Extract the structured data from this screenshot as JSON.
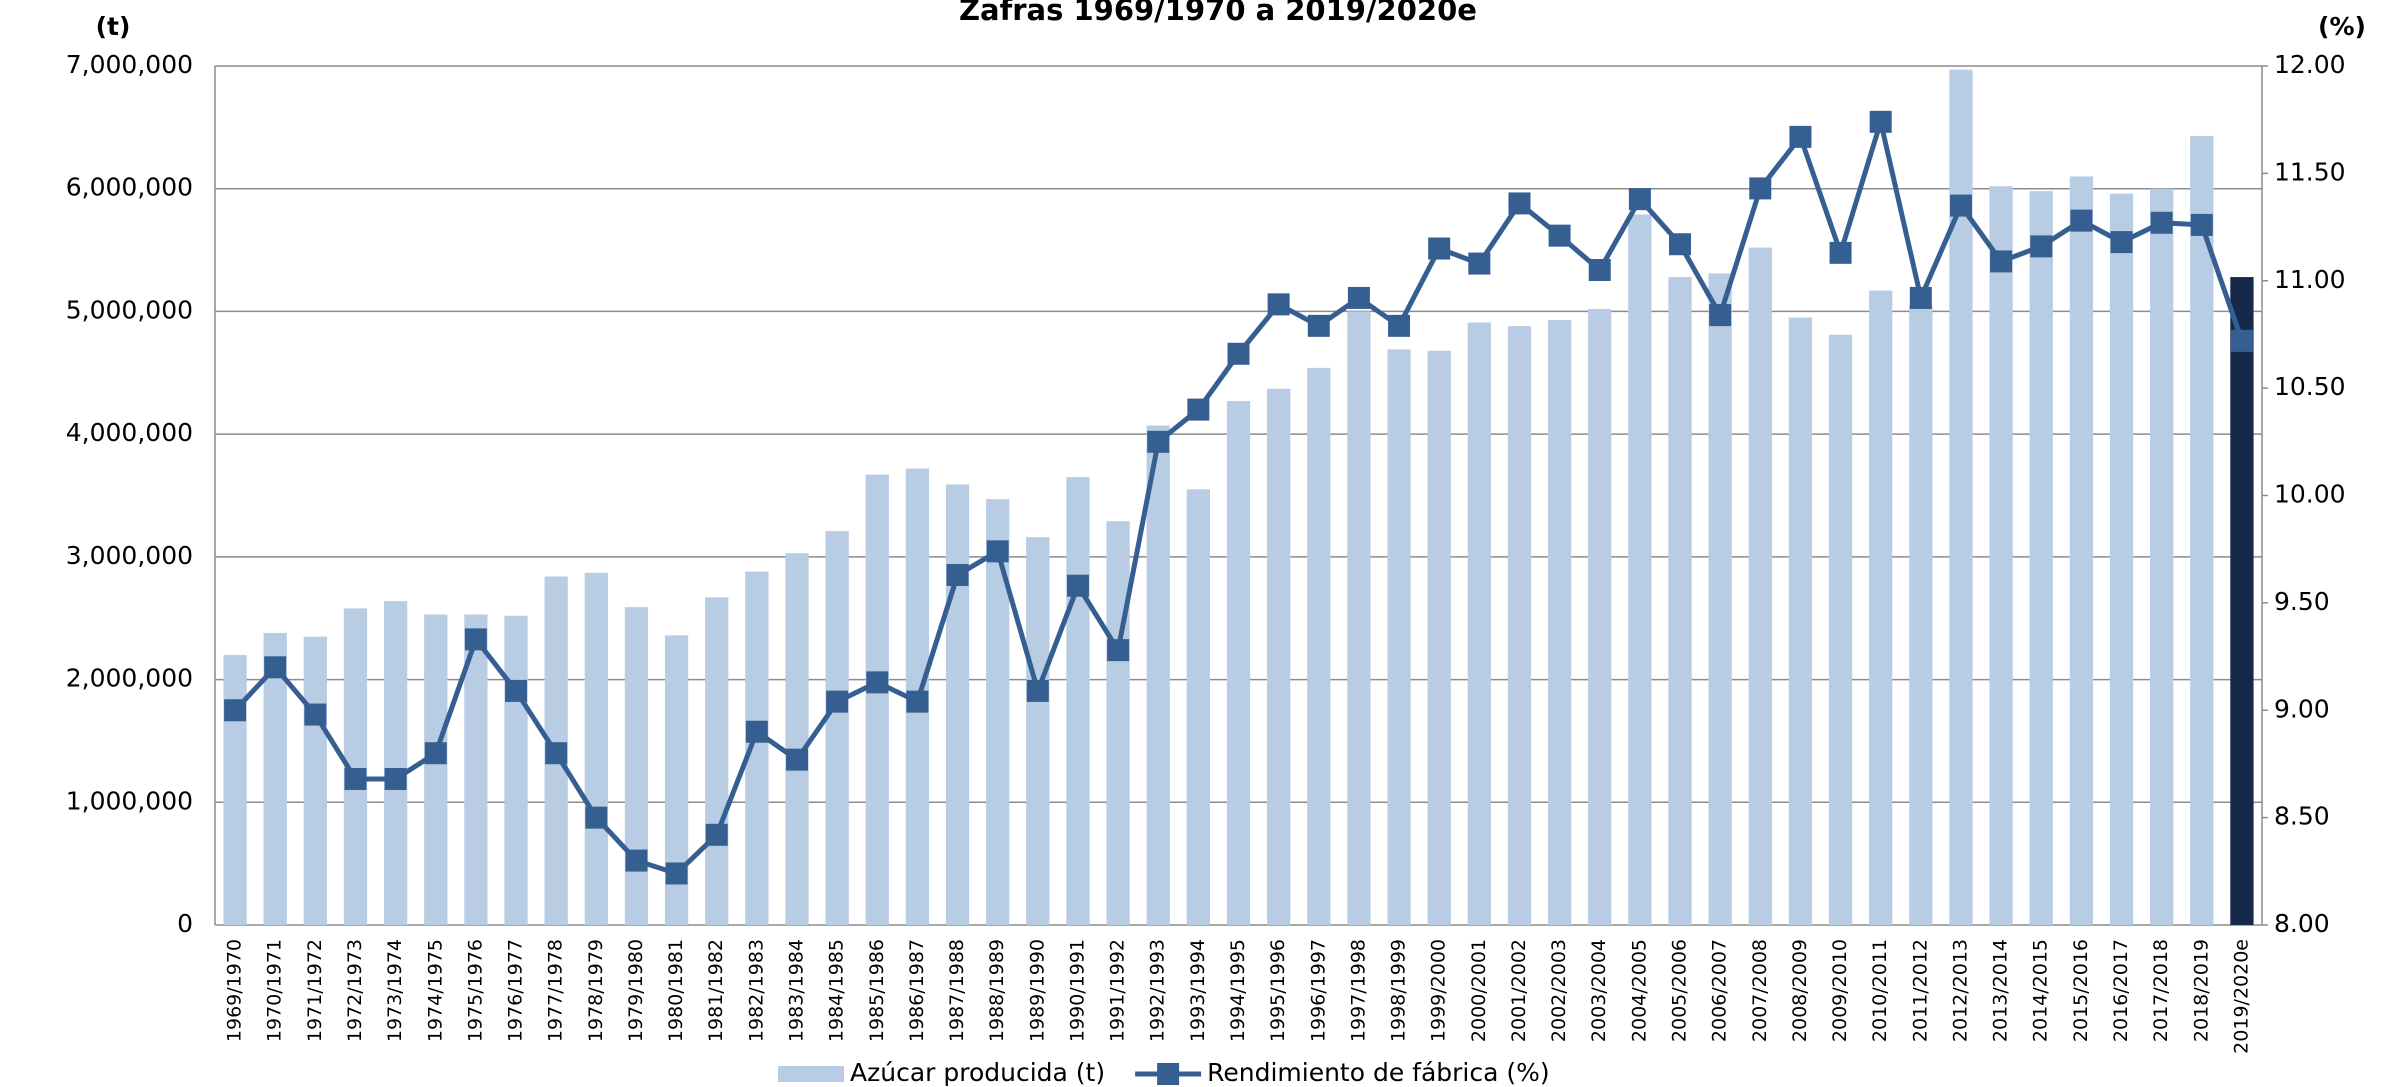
{
  "chart_data": {
    "type": "bar-line",
    "title": "Zafras 1969/1970 a 2019/2020e",
    "y_label": "(t)",
    "y2_label": "(%)",
    "categories": [
      "1969/1970",
      "1970/1971",
      "1971/1972",
      "1972/1973",
      "1973/1974",
      "1974/1975",
      "1975/1976",
      "1976/1977",
      "1977/1978",
      "1978/1979",
      "1979/1980",
      "1980/1981",
      "1981/1982",
      "1982/1983",
      "1983/1984",
      "1984/1985",
      "1985/1986",
      "1986/1987",
      "1987/1988",
      "1988/1989",
      "1989/1990",
      "1990/1991",
      "1991/1992",
      "1992/1993",
      "1993/1994",
      "1994/1995",
      "1995/1996",
      "1996/1997",
      "1997/1998",
      "1998/1999",
      "1999/2000",
      "2000/2001",
      "2001/2002",
      "2002/2003",
      "2003/2004",
      "2004/2005",
      "2005/2006",
      "2006/2007",
      "2007/2008",
      "2008/2009",
      "2009/2010",
      "2010/2011",
      "2011/2012",
      "2012/2013",
      "2013/2014",
      "2014/2015",
      "2015/2016",
      "2016/2017",
      "2017/2018",
      "2018/2019",
      "2019/2020e"
    ],
    "series": [
      {
        "name": "Azúcar producida (t)",
        "type": "bar",
        "color": "#b8cce4",
        "colors": [
          "#b8cce4",
          "#b8cce4",
          "#b8cce4",
          "#b8cce4",
          "#b8cce4",
          "#b8cce4",
          "#b8cce4",
          "#b8cce4",
          "#b8cce4",
          "#b8cce4",
          "#b8cce4",
          "#b8cce4",
          "#b8cce4",
          "#b8cce4",
          "#b8cce4",
          "#b8cce4",
          "#b8cce4",
          "#b8cce4",
          "#b8cce4",
          "#b8cce4",
          "#b8cce4",
          "#b8cce4",
          "#b8cce4",
          "#b8cce4",
          "#b8cce4",
          "#b8cce4",
          "#b8cce4",
          "#b8cce4",
          "#b8cce4",
          "#b8cce4",
          "#b8cce4",
          "#b8cce4",
          "#b8cce4",
          "#b8cce4",
          "#b8cce4",
          "#b8cce4",
          "#b8cce4",
          "#b8cce4",
          "#b8cce4",
          "#b8cce4",
          "#b8cce4",
          "#b8cce4",
          "#b8cce4",
          "#b8cce4",
          "#b8cce4",
          "#b8cce4",
          "#b8cce4",
          "#b8cce4",
          "#b8cce4",
          "#b8cce4",
          "#17294a"
        ],
        "values": [
          2200000,
          2380000,
          2350000,
          2580000,
          2640000,
          2530000,
          2530000,
          2520000,
          2840000,
          2870000,
          2590000,
          2360000,
          2670000,
          2880000,
          3030000,
          3210000,
          3670000,
          3720000,
          3590000,
          3470000,
          3160000,
          3650000,
          3290000,
          4070000,
          3550000,
          4270000,
          4370000,
          4540000,
          5000000,
          4690000,
          4680000,
          4910000,
          4880000,
          4930000,
          5020000,
          5790000,
          5280000,
          5310000,
          5520000,
          4950000,
          4810000,
          5170000,
          5050000,
          6970000,
          6020000,
          5980000,
          6100000,
          5960000,
          6000000,
          6430000,
          5280000
        ]
      },
      {
        "name": "Rendimiento de fábrica (%)",
        "type": "line",
        "axis": "y2",
        "color": "#365f91",
        "values": [
          9.0,
          9.2,
          8.98,
          8.68,
          8.68,
          8.8,
          9.33,
          9.09,
          8.8,
          8.5,
          8.3,
          8.24,
          8.42,
          8.9,
          8.77,
          9.04,
          9.13,
          9.04,
          9.63,
          9.74,
          9.09,
          9.58,
          9.28,
          10.25,
          10.4,
          10.66,
          10.89,
          10.79,
          10.92,
          10.79,
          11.15,
          11.08,
          11.36,
          11.21,
          11.05,
          11.38,
          11.17,
          10.84,
          11.43,
          11.67,
          11.13,
          11.74,
          10.92,
          11.35,
          11.09,
          11.16,
          11.28,
          11.18,
          11.27,
          11.26,
          10.72
        ]
      }
    ],
    "ylim": [
      0,
      7000000
    ],
    "yticks": [
      0,
      {
        "value": 1000000,
        "label": "1,000,000"
      },
      {
        "value": 2000000,
        "label": "2,000,000"
      },
      {
        "value": 3000000,
        "label": "3,000,000"
      },
      {
        "value": 4000000,
        "label": "4,000,000"
      },
      {
        "value": 5000000,
        "label": "5,000,000"
      },
      {
        "value": 6000000,
        "label": "6,000,000"
      },
      {
        "value": 7000000,
        "label": "7,000,000"
      }
    ],
    "y2lim": [
      8,
      12
    ],
    "y2ticks": [
      {
        "value": 8,
        "label": "8.00"
      },
      {
        "value": 8.5,
        "label": "8.50"
      },
      {
        "value": 9,
        "label": "9.00"
      },
      {
        "value": 9.5,
        "label": "9.50"
      },
      {
        "value": 10,
        "label": "10.00"
      },
      {
        "value": 10.5,
        "label": "10.50"
      },
      {
        "value": 11,
        "label": "11.00"
      },
      {
        "value": 11.5,
        "label": "11.50"
      },
      {
        "value": 12,
        "label": "12.00"
      }
    ],
    "grid": true,
    "legend": "bottom"
  }
}
